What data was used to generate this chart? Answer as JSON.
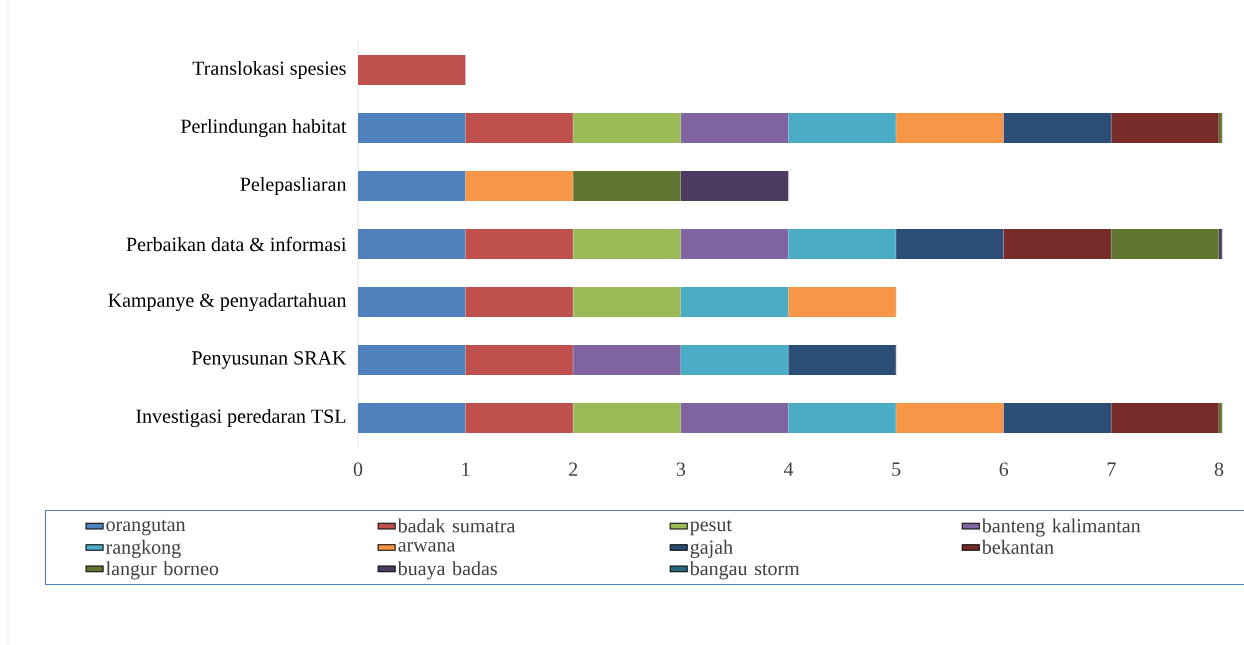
{
  "chart_data": {
    "type": "bar",
    "orientation": "horizontal",
    "stacked": true,
    "categories": [
      "Translokasi spesies",
      "Perlindungan habitat",
      "Pelepasliaran",
      "Perbaikan data & informasi",
      "Kampanye & penyadartahuan",
      "Penyusunan SRAK",
      "Investigasi peredaran TSL"
    ],
    "series": [
      {
        "name": "orangutan",
        "color": "#4f81bd",
        "values": [
          null,
          1,
          1,
          1,
          1,
          1,
          1
        ]
      },
      {
        "name": "badak sumatra",
        "color": "#c0504d",
        "values": [
          1,
          1,
          null,
          1,
          1,
          1,
          1
        ]
      },
      {
        "name": "pesut",
        "color": "#9bbb59",
        "values": [
          null,
          1,
          null,
          1,
          1,
          null,
          1
        ]
      },
      {
        "name": "banteng kalimantan",
        "color": "#8064a2",
        "values": [
          null,
          1,
          null,
          1,
          null,
          1,
          1
        ]
      },
      {
        "name": "rangkong",
        "color": "#4bacc6",
        "values": [
          null,
          1,
          null,
          1,
          1,
          1,
          1
        ]
      },
      {
        "name": "arwana",
        "color": "#f79646",
        "values": [
          null,
          1,
          1,
          null,
          1,
          null,
          1
        ]
      },
      {
        "name": "gajah",
        "color": "#2c4d75",
        "values": [
          null,
          1,
          null,
          1,
          null,
          1,
          1
        ]
      },
      {
        "name": "bekantan",
        "color": "#772c2a",
        "values": [
          null,
          1,
          null,
          1,
          null,
          null,
          1
        ]
      },
      {
        "name": "langur borneo",
        "color": "#5f7530",
        "values": [
          null,
          0.03,
          1,
          1,
          null,
          null,
          0.03
        ]
      },
      {
        "name": "buaya badas",
        "color": "#4d3b62",
        "values": [
          null,
          null,
          1,
          0.03,
          null,
          null,
          null
        ]
      },
      {
        "name": "bangau storm",
        "color": "#276a7c",
        "values": [
          null,
          null,
          null,
          null,
          null,
          null,
          null
        ]
      }
    ],
    "xlim": [
      0,
      8
    ],
    "xticks": [
      0,
      1,
      2,
      3,
      4,
      5,
      6,
      7,
      8
    ],
    "legend": "bottom"
  }
}
